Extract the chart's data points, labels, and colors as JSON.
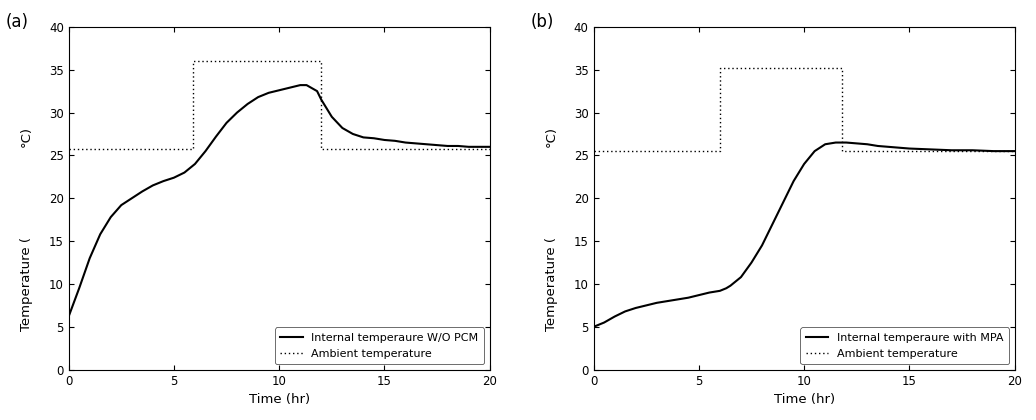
{
  "panel_a": {
    "label": "(a)",
    "legend_solid": "Internal temperaure W/O PCM",
    "legend_dotted": "Ambient temperature",
    "internal_x": [
      0,
      0.5,
      1.0,
      1.5,
      2.0,
      2.5,
      3.0,
      3.5,
      4.0,
      4.5,
      5.0,
      5.5,
      6.0,
      6.5,
      7.0,
      7.5,
      8.0,
      8.5,
      9.0,
      9.5,
      10.0,
      10.5,
      11.0,
      11.3,
      11.8,
      12.0,
      12.5,
      13.0,
      13.5,
      14.0,
      14.5,
      15.0,
      15.5,
      16.0,
      16.5,
      17.0,
      17.5,
      18.0,
      18.5,
      19.0,
      19.5,
      20.0
    ],
    "internal_y": [
      6.2,
      9.5,
      13.0,
      15.8,
      17.8,
      19.2,
      20.0,
      20.8,
      21.5,
      22.0,
      22.4,
      23.0,
      24.0,
      25.5,
      27.2,
      28.8,
      30.0,
      31.0,
      31.8,
      32.3,
      32.6,
      32.9,
      33.2,
      33.2,
      32.5,
      31.5,
      29.5,
      28.2,
      27.5,
      27.1,
      27.0,
      26.8,
      26.7,
      26.5,
      26.4,
      26.3,
      26.2,
      26.1,
      26.1,
      26.0,
      26.0,
      26.0
    ],
    "ambient_x": [
      0,
      5.9,
      5.9,
      12.0,
      12.0,
      20.0
    ],
    "ambient_y": [
      25.8,
      25.8,
      36.0,
      36.0,
      25.8,
      25.8
    ]
  },
  "panel_b": {
    "label": "(b)",
    "legend_solid": "Internal temperaure with MPA",
    "legend_dotted": "Ambient temperature",
    "internal_x": [
      0,
      0.2,
      0.5,
      1.0,
      1.5,
      2.0,
      2.5,
      3.0,
      3.5,
      4.0,
      4.5,
      5.0,
      5.5,
      6.0,
      6.3,
      6.5,
      7.0,
      7.5,
      8.0,
      8.5,
      9.0,
      9.5,
      10.0,
      10.5,
      11.0,
      11.5,
      12.0,
      12.5,
      13.0,
      13.5,
      14.0,
      15.0,
      16.0,
      17.0,
      18.0,
      19.0,
      20.0
    ],
    "internal_y": [
      5.0,
      5.2,
      5.5,
      6.2,
      6.8,
      7.2,
      7.5,
      7.8,
      8.0,
      8.2,
      8.4,
      8.7,
      9.0,
      9.2,
      9.5,
      9.8,
      10.8,
      12.5,
      14.5,
      17.0,
      19.5,
      22.0,
      24.0,
      25.5,
      26.3,
      26.5,
      26.5,
      26.4,
      26.3,
      26.1,
      26.0,
      25.8,
      25.7,
      25.6,
      25.6,
      25.5,
      25.5
    ],
    "ambient_x": [
      0,
      6.0,
      6.0,
      11.8,
      11.8,
      20.0
    ],
    "ambient_y": [
      25.5,
      25.5,
      35.2,
      35.2,
      25.5,
      25.5
    ]
  },
  "xlim": [
    0,
    20
  ],
  "ylim": [
    0,
    40
  ],
  "xticks": [
    0,
    5,
    10,
    15,
    20
  ],
  "yticks": [
    0,
    5,
    10,
    15,
    20,
    25,
    30,
    35,
    40
  ],
  "xlabel": "Time (hr)",
  "ylabel_bottom": "Temperature (",
  "ylabel_top": "°C)",
  "line_color": "#000000",
  "bg_color": "#ffffff",
  "legend_fontsize": 8.0,
  "axis_fontsize": 9.5,
  "tick_fontsize": 8.5,
  "label_fontsize": 12
}
